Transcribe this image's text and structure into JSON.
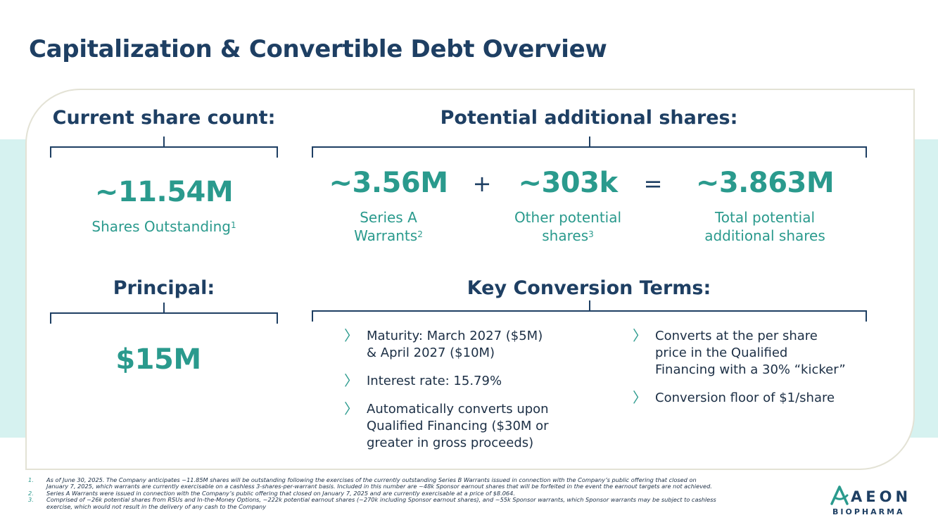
{
  "title": "Capitalization & Convertible Debt Overview",
  "current": {
    "heading": "Current share count:",
    "value": "~11.54M",
    "label": "Shares Outstanding",
    "label_sup": "1"
  },
  "potential": {
    "heading": "Potential additional shares:",
    "series_a": {
      "value": "~3.56M",
      "label_line1": "Series A",
      "label_line2": "Warrants",
      "sup": "2"
    },
    "plus": "+",
    "other": {
      "value": "~303k",
      "label_line1": "Other potential",
      "label_line2": "shares",
      "sup": "3"
    },
    "equals": "=",
    "total": {
      "value": "~3.863M",
      "label_line1": "Total potential",
      "label_line2": "additional shares"
    }
  },
  "principal": {
    "heading": "Principal:",
    "value": "$15M"
  },
  "terms": {
    "heading": "Key Conversion Terms:",
    "left": [
      {
        "line1": "Maturity: March 2027 ($5M)",
        "line2": "& April 2027 ($10M)",
        "line3": ""
      },
      {
        "line1": "Interest rate: 15.79%",
        "line2": "",
        "line3": ""
      },
      {
        "line1": "Automatically converts upon",
        "line2": "Qualified Financing ($30M or",
        "line3": "greater in gross proceeds)"
      }
    ],
    "right": [
      {
        "line1": "Converts at the per share",
        "line2": "price in the Qualified",
        "line3": "Financing with a 30% “kicker”"
      },
      {
        "line1": "Conversion floor of $1/share",
        "line2": "",
        "line3": ""
      }
    ]
  },
  "footnotes": [
    {
      "num": "1.",
      "line1": "As of June 30, 2025.  The Company anticipates ~11.85M shares will be outstanding following the exercises of the currently outstanding Series B Warrants issued in connection with the Company’s public offering that closed on",
      "line2": "January 7, 2025, which warrants are currently exercisable on a cashless 3-shares-per-warrant basis.  Included in this number are ~48k Sponsor earnout shares that will be forfeited in the event the earnout targets are not achieved."
    },
    {
      "num": "2.",
      "line1": "Series A Warrants were issued in connection with the Company’s public offering that closed on January 7, 2025 and are currently exercisable at a price of $8.064.",
      "line2": ""
    },
    {
      "num": "3.",
      "line1": "Comprised of ~26k potential shares from RSUs and In-the-Money Options, ~222k potential earnout shares (~270k including Sponsor earnout shares), and ~55k Sponsor warrants, which Sponsor warrants may be subject to cashless",
      "line2": "exercise, which would not result in the delivery of any cash to the Company"
    }
  ],
  "logo": {
    "word": "AEON",
    "sub": "BIOPHARMA"
  },
  "colors": {
    "navy": "#1e3f63",
    "teal": "#2a9a8d",
    "band": "#d6f2f0"
  },
  "icons": {
    "bullet": "chevron-right-icon"
  }
}
